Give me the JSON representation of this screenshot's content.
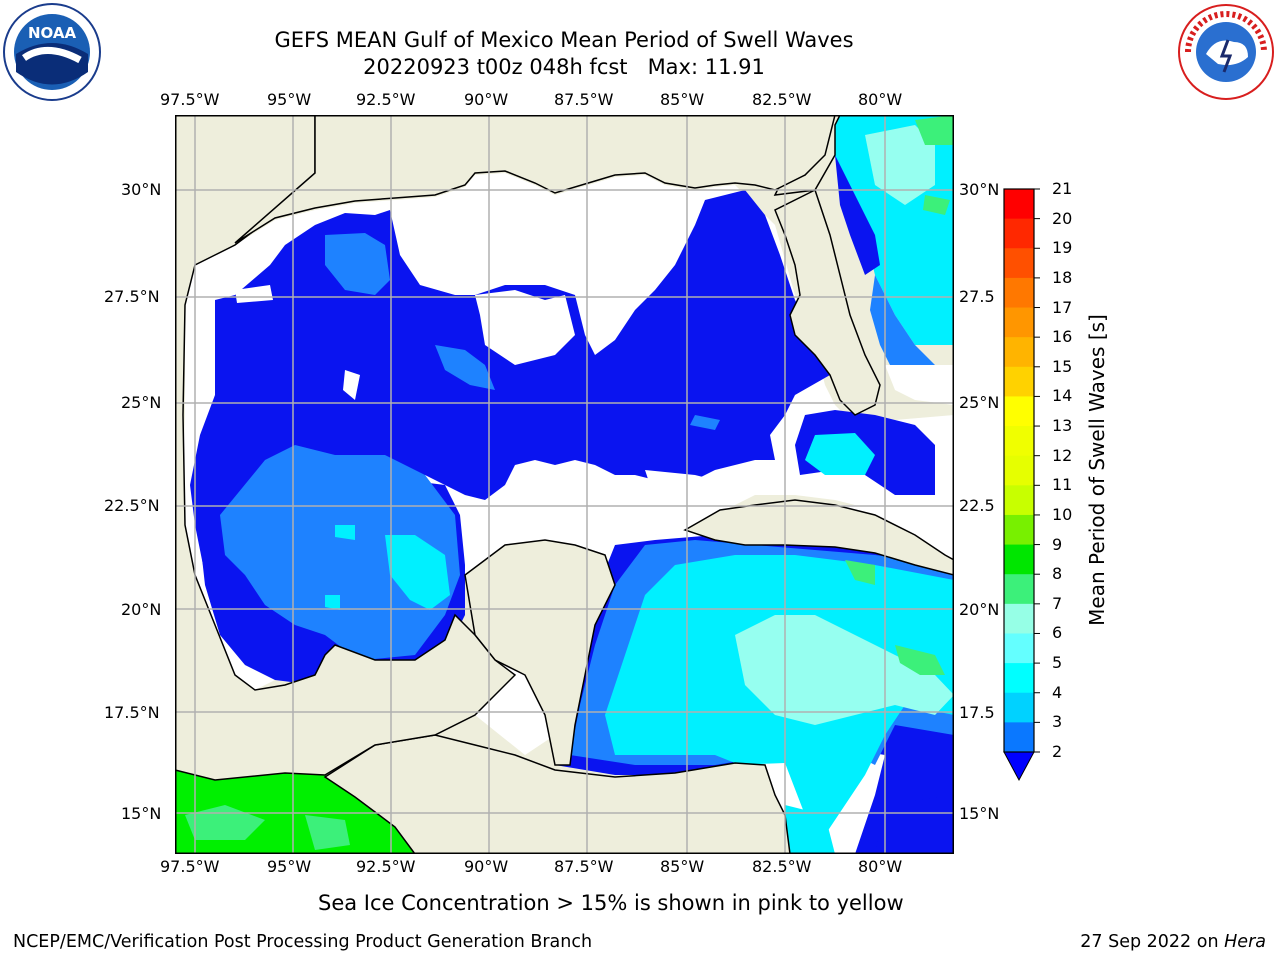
{
  "title_line1": "GEFS MEAN Gulf of Mexico Mean Period of Swell Waves",
  "title_line2": "20220923 t00z 048h fcst   Max: 11.91",
  "logos": {
    "left": {
      "icon": "noaa-logo-icon",
      "text": "NOAA"
    },
    "right": {
      "icon": "nws-logo-icon",
      "text": "NATIONAL WEATHER SERVICE"
    }
  },
  "map": {
    "lon_labels": [
      "97.5°W",
      "95°W",
      "92.5°W",
      "90°W",
      "87.5°W",
      "85°W",
      "82.5°W",
      "80°W"
    ],
    "lat_labels_left": [
      "30°N",
      "27.5°N",
      "25°N",
      "22.5°N",
      "20°N",
      "17.5°N",
      "15°N"
    ],
    "lat_labels_right": [
      "30°N",
      "27.5",
      "25°N",
      "22.5",
      "20°N",
      "17.5",
      "15°N"
    ]
  },
  "colorbar": {
    "label": "Mean Period of Swell Waves [s]",
    "ticks": [
      "21",
      "20",
      "19",
      "18",
      "17",
      "16",
      "15",
      "14",
      "13",
      "12",
      "11",
      "10",
      "9",
      "8",
      "7",
      "6",
      "5",
      "4",
      "3",
      "2"
    ],
    "colors": [
      "#ff0000",
      "#ff2800",
      "#ff5000",
      "#ff7800",
      "#ff9600",
      "#ffb400",
      "#ffd200",
      "#ffff00",
      "#f0ff00",
      "#e6ff00",
      "#c8ff00",
      "#78f000",
      "#00e600",
      "#3cf07a",
      "#96ffe6",
      "#64ffff",
      "#00ffff",
      "#00d2ff",
      "#0a78ff",
      "#0000ff"
    ],
    "min_tick": "2",
    "max_tick": "21"
  },
  "colors": {
    "land": "#eeeedc",
    "ocean_none": "#ffffff",
    "blue": "#0a14f0",
    "mid_blue": "#1e82ff",
    "cyan": "#00f0ff",
    "light_cyan": "#96fff0",
    "green": "#3cf07a",
    "bright_green": "#00f000"
  },
  "caption": "Sea Ice Concentration > 15% is shown in pink to yellow",
  "footer": {
    "left": "NCEP/EMC/Verification Post Processing Product Generation Branch",
    "right_date": "27 Sep 2022 on",
    "right_host": "Hera"
  }
}
